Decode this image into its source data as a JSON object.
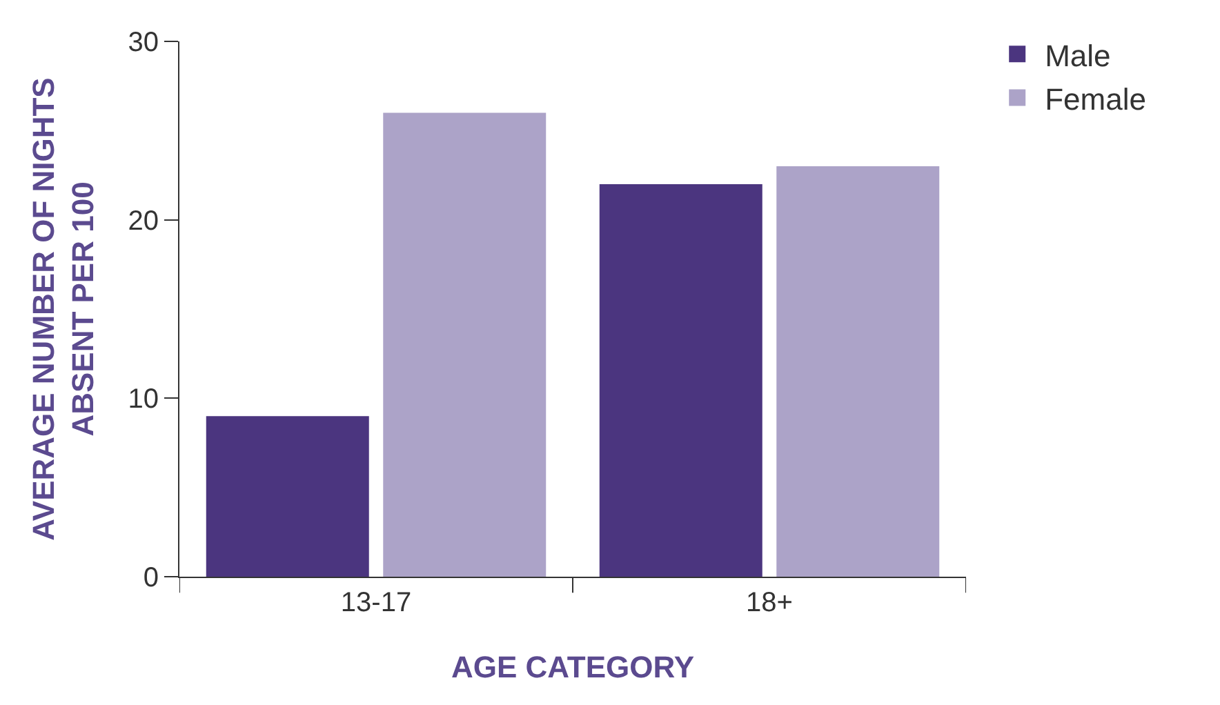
{
  "chart_data": {
    "type": "bar",
    "xlabel": "AGE CATEGORY",
    "ylabel": "AVERAGE NUMBER OF NIGHTS\nABSENT PER 100",
    "categories": [
      "13-17",
      "18+"
    ],
    "series": [
      {
        "name": "Male",
        "color": "#4b357f",
        "values": [
          9,
          22
        ]
      },
      {
        "name": "Female",
        "color": "#aca3c8",
        "values": [
          26,
          23
        ]
      }
    ],
    "ylim": [
      0,
      30
    ],
    "yticks": [
      0,
      10,
      20,
      30
    ],
    "legend": "top right"
  }
}
